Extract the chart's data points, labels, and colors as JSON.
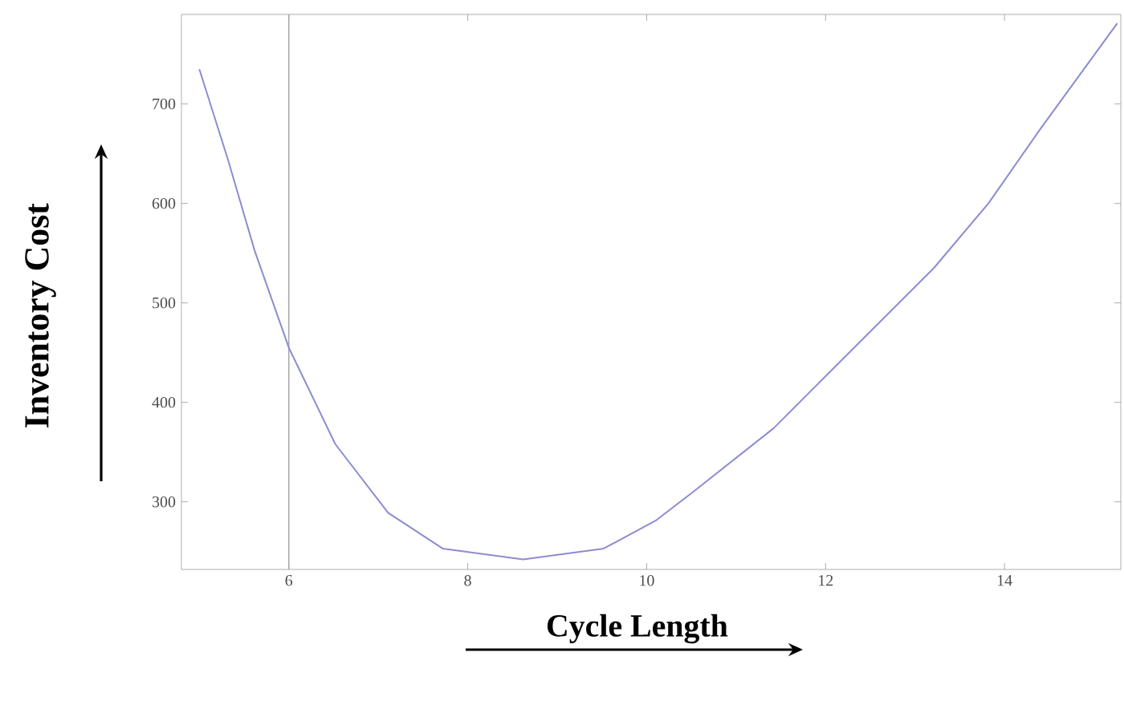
{
  "chart_data": {
    "type": "line",
    "xlabel": "Cycle Length",
    "ylabel": "Inventory Cost",
    "x": [
      5.0,
      5.32,
      5.62,
      6.0,
      6.52,
      7.11,
      7.72,
      8.62,
      9.52,
      10.1,
      10.52,
      11.42,
      12.03,
      12.62,
      13.21,
      13.82,
      14.41,
      15.26
    ],
    "values": [
      735,
      644,
      552,
      455,
      358,
      289,
      253,
      242,
      253,
      281,
      310,
      374,
      429,
      482,
      535,
      600,
      676,
      781
    ],
    "color": "#8c8cd0",
    "xlim": [
      4.8,
      15.3
    ],
    "ylim": [
      232,
      790
    ],
    "xticks": [
      6,
      8,
      10,
      12,
      14
    ],
    "yticks": [
      300,
      400,
      500,
      600,
      700
    ],
    "ref_lines": [
      {
        "axis": "x",
        "value": 6,
        "color": "#aaaaaa"
      }
    ]
  }
}
